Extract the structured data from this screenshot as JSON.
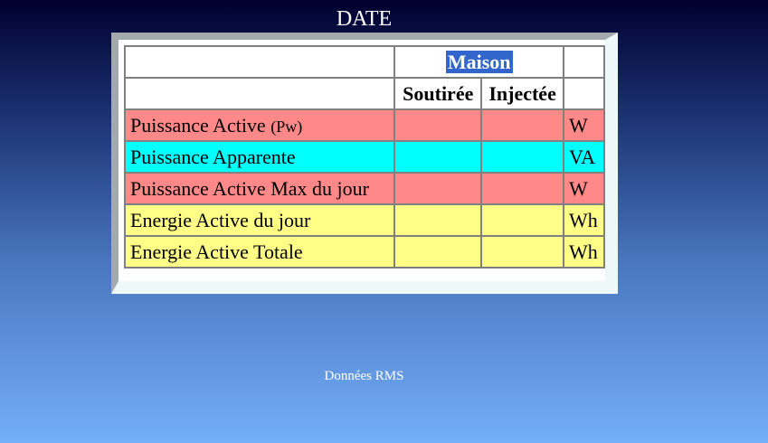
{
  "title": "DATE",
  "table": {
    "group_header": "Maison",
    "columns": [
      "Soutirée",
      "Injectée"
    ],
    "rows": [
      {
        "label": "Puissance Active",
        "sub": "(Pw)",
        "unit": "W",
        "color": "#ff8888"
      },
      {
        "label": "Puissance Apparente",
        "unit": "VA",
        "color": "#00ffff"
      },
      {
        "label": "Puissance Active Max du jour",
        "unit": "W",
        "color": "#ff8888"
      },
      {
        "label": "Energie Active du jour",
        "unit": "Wh",
        "color": "#ffff88"
      },
      {
        "label": "Energie Active Totale",
        "unit": "Wh",
        "color": "#ffff88"
      }
    ]
  },
  "footer": "Données RMS"
}
